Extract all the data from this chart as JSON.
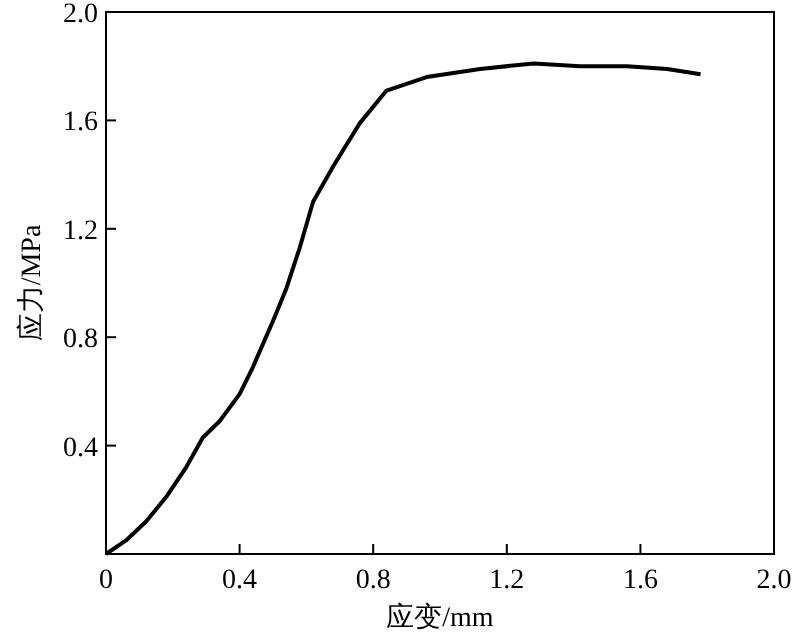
{
  "chart_data": {
    "type": "line",
    "xlabel": "应变/mm",
    "ylabel": "应力/MPa",
    "xlim": [
      0,
      2.0
    ],
    "ylim": [
      0,
      2.0
    ],
    "xticks": [
      0,
      {
        "value": 0.4,
        "label": "0.4"
      },
      {
        "value": 0.8,
        "label": "0.8"
      },
      {
        "value": 1.2,
        "label": "1.2"
      },
      {
        "value": 1.6,
        "label": "1.6"
      },
      {
        "value": 2.0,
        "label": "2.0"
      }
    ],
    "yticks": [
      {
        "value": 0,
        "label": null
      },
      {
        "value": 0.4,
        "label": "0.4"
      },
      {
        "value": 0.8,
        "label": "0.8"
      },
      {
        "value": 1.2,
        "label": "1.2"
      },
      {
        "value": 1.6,
        "label": "1.6"
      },
      {
        "value": 2.0,
        "label": "2.0"
      }
    ],
    "grid": false,
    "marker": "none",
    "line_style": "solid",
    "series": [
      {
        "color": "#000000",
        "x": [
          0,
          0.06,
          0.12,
          0.18,
          0.24,
          0.29,
          0.34,
          0.4,
          0.44,
          0.5,
          0.54,
          0.58,
          0.62,
          0.68,
          0.72,
          0.76,
          0.84,
          0.96,
          1.12,
          1.28,
          1.42,
          1.56,
          1.68,
          1.78
        ],
        "values": [
          0,
          0.05,
          0.12,
          0.21,
          0.32,
          0.43,
          0.49,
          0.59,
          0.69,
          0.86,
          0.98,
          1.13,
          1.3,
          1.43,
          1.51,
          1.59,
          1.71,
          1.76,
          1.79,
          1.81,
          1.8,
          1.8,
          1.79,
          1.77
        ]
      }
    ]
  }
}
